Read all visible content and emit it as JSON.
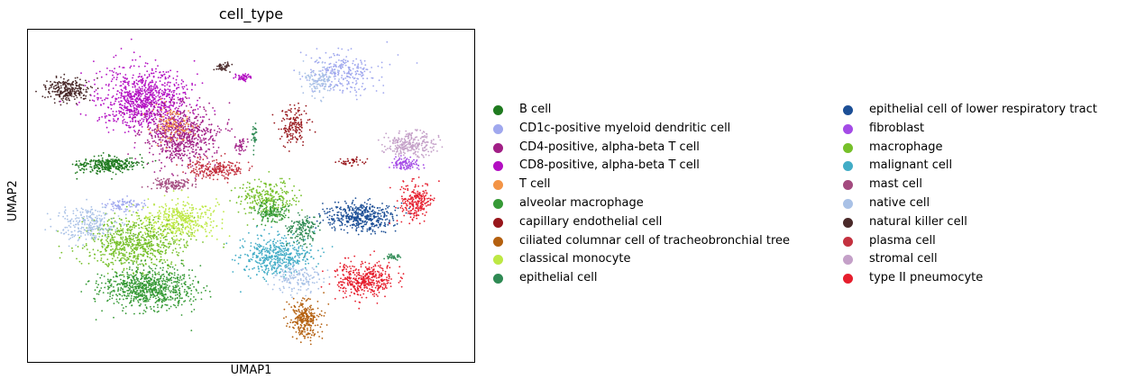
{
  "chart_data": {
    "type": "scatter",
    "title": "cell_type",
    "xlabel": "UMAP1",
    "ylabel": "UMAP2",
    "grid": false,
    "ticks": false,
    "legend_position": "right, two columns",
    "series": [
      {
        "name": "B cell",
        "color": "#1f7a1f"
      },
      {
        "name": "CD1c-positive myeloid dendritic cell",
        "color": "#a0a8ee"
      },
      {
        "name": "CD4-positive, alpha-beta T cell",
        "color": "#a11f86"
      },
      {
        "name": "CD8-positive, alpha-beta T cell",
        "color": "#b30fc2"
      },
      {
        "name": "T cell",
        "color": "#f39446"
      },
      {
        "name": "alveolar macrophage",
        "color": "#369a36"
      },
      {
        "name": "capillary endothelial cell",
        "color": "#98161b"
      },
      {
        "name": "ciliated columnar cell of tracheobronchial tree",
        "color": "#b4600f"
      },
      {
        "name": "classical monocyte",
        "color": "#bde844"
      },
      {
        "name": "epithelial cell",
        "color": "#2f8a54"
      },
      {
        "name": "epithelial cell of lower respiratory tract",
        "color": "#1c4f96"
      },
      {
        "name": "fibroblast",
        "color": "#a44be6"
      },
      {
        "name": "macrophage",
        "color": "#76c02a"
      },
      {
        "name": "malignant cell",
        "color": "#41acc6"
      },
      {
        "name": "mast cell",
        "color": "#a34a7f"
      },
      {
        "name": "native cell",
        "color": "#a9c1e6"
      },
      {
        "name": "natural killer cell",
        "color": "#4a2a2a"
      },
      {
        "name": "plasma cell",
        "color": "#c4313f"
      },
      {
        "name": "stromal cell",
        "color": "#c4a0c8"
      },
      {
        "name": "type II pneumocyte",
        "color": "#e61e2d"
      }
    ]
  }
}
